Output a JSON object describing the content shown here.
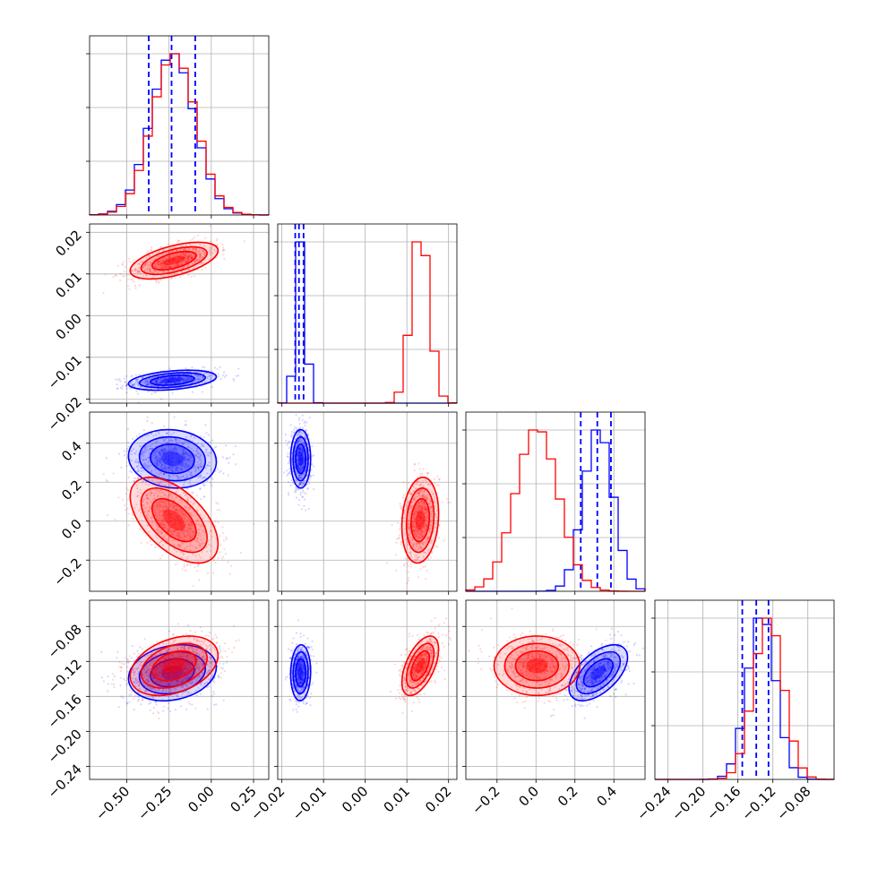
{
  "chart_data": {
    "type": "scatter",
    "title": "",
    "grid": true,
    "colors": {
      "blue": "#0000ff",
      "red": "#ff0000",
      "grid": "#b0b0b0"
    },
    "params": [
      {
        "range": [
          -0.72,
          0.34
        ],
        "ticks": [
          -0.5,
          -0.25,
          0.0,
          0.25
        ],
        "labels": [
          "−0.50",
          "−0.25",
          "0.00",
          "0.25"
        ]
      },
      {
        "range": [
          -0.021,
          0.022
        ],
        "ticks": [
          -0.02,
          -0.01,
          0.0,
          0.01,
          0.02
        ],
        "labels": [
          "−0.02",
          "−0.01",
          "0.00",
          "0.01",
          "0.02"
        ]
      },
      {
        "range": [
          -0.36,
          0.56
        ],
        "ticks": [
          -0.2,
          0.0,
          0.2,
          0.4
        ],
        "labels": [
          "−0.2",
          "0.0",
          "0.2",
          "0.4"
        ]
      },
      {
        "range": [
          -0.255,
          -0.05
        ],
        "ticks": [
          -0.24,
          -0.2,
          -0.16,
          -0.12,
          -0.08
        ],
        "labels": [
          "−0.24",
          "−0.20",
          "−0.16",
          "−0.12",
          "−0.08"
        ]
      }
    ],
    "series": [
      {
        "color": "blue",
        "mean": [
          -0.23,
          -0.0155,
          0.32,
          -0.133
        ],
        "std": [
          0.13,
          0.0012,
          0.075,
          0.016
        ],
        "quantiles": [
          [
            -0.37,
            -0.235,
            -0.095
          ],
          [
            -0.0168,
            -0.0159,
            -0.0148
          ],
          [
            0.23,
            0.315,
            0.385
          ],
          [
            -0.155,
            -0.139,
            -0.125
          ]
        ]
      },
      {
        "color": "red",
        "mean": [
          -0.22,
          0.0132,
          0.005,
          -0.125
        ],
        "std": [
          0.13,
          0.0022,
          0.11,
          0.017
        ],
        "quantiles": []
      }
    ],
    "correlations": {
      "blue": {
        "1-0": 0.35,
        "2-0": -0.1,
        "3-0": 0.2,
        "3-1": 0.05,
        "3-2": 0.55
      },
      "red": {
        "1-0": 0.55,
        "2-0": -0.55,
        "3-0": 0.35,
        "3-1": 0.55,
        "2-1": 0.15
      }
    }
  }
}
